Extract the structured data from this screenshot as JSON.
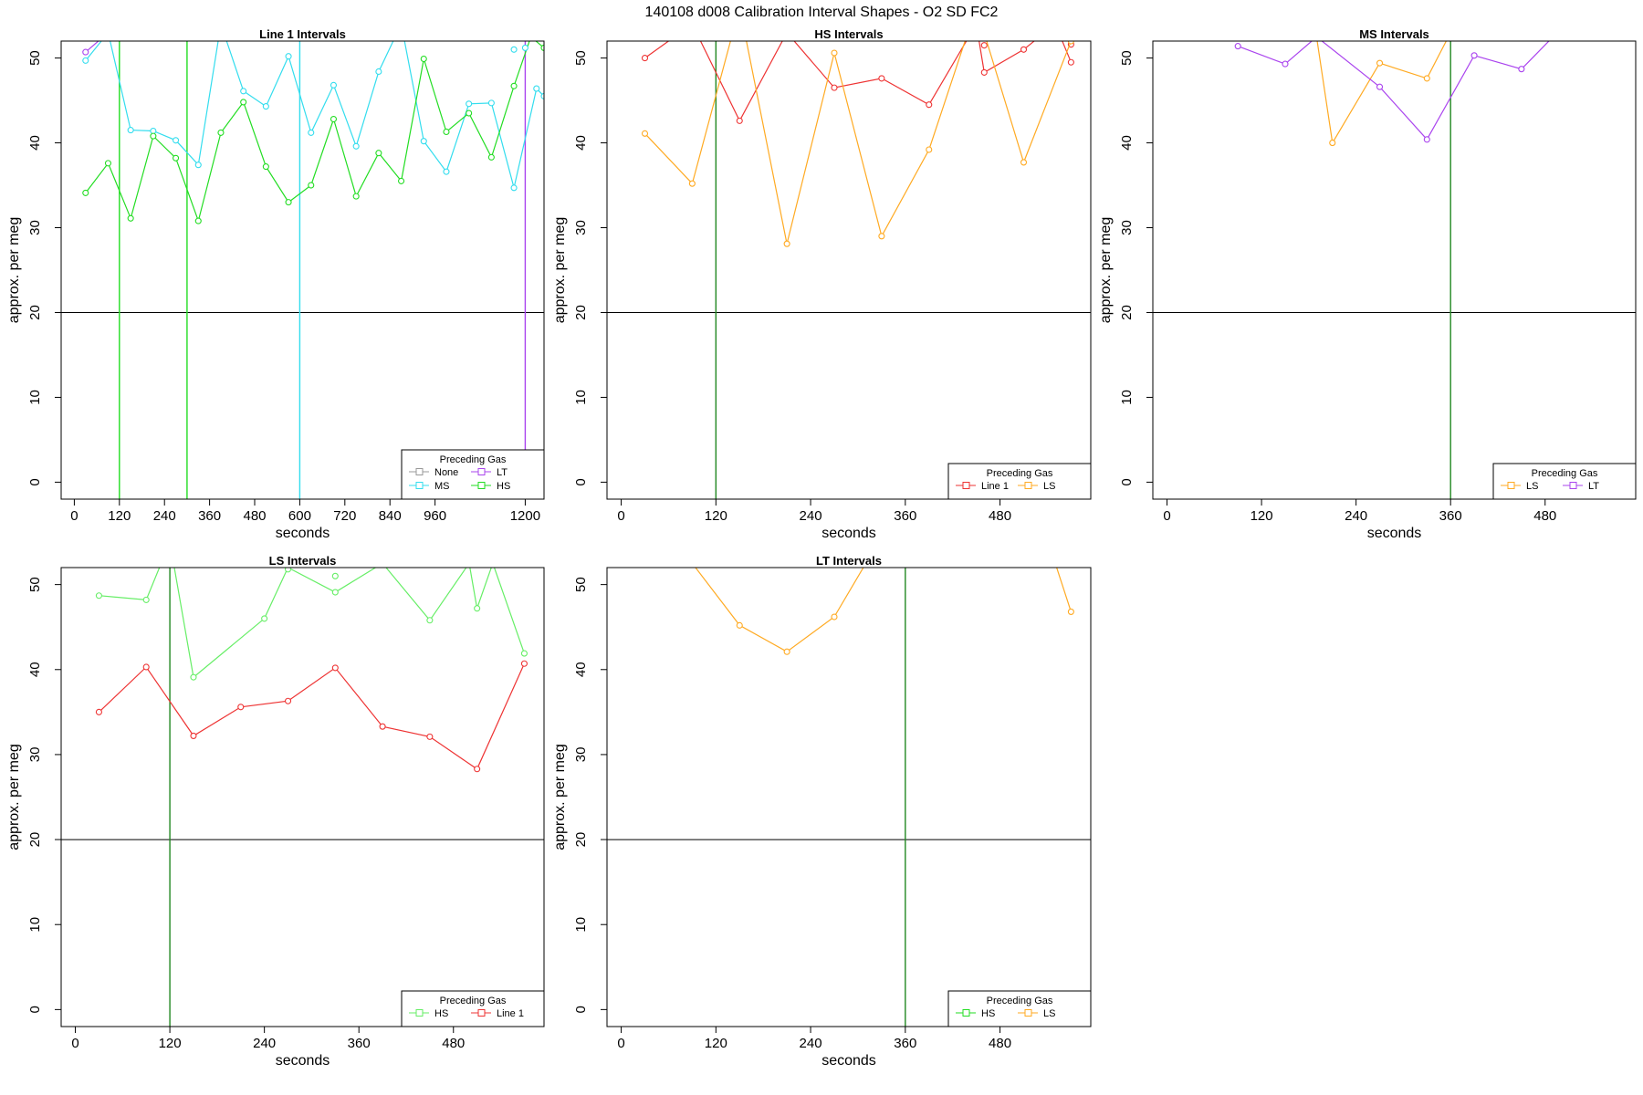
{
  "page": {
    "title": "140108   d008   Calibration Interval Shapes - O2 SD FC2",
    "legend_title": "Preceding Gas"
  },
  "colors": {
    "None": "#999999",
    "MS": "#33ddee",
    "LT": "#aa44ee",
    "HS": "#22dd22",
    "HS_light": "#66ee66",
    "Line 1": "#ee3333",
    "LS": "#ffaa22",
    "axis": "#000000",
    "ref_line": "#000000",
    "vline_dark": "#228822"
  },
  "chart_data": [
    {
      "type": "line",
      "title": "Line 1 Intervals",
      "xlabel": "seconds",
      "ylabel": "approx. per meg",
      "xlim": [
        -35,
        1250
      ],
      "ylim": [
        -2,
        52
      ],
      "xticks": [
        0,
        120,
        240,
        360,
        480,
        600,
        720,
        840,
        960,
        1200
      ],
      "yticks": [
        0,
        10,
        20,
        30,
        40,
        50
      ],
      "hline": 20,
      "vlines": [
        {
          "x": 120,
          "color_key": "HS"
        },
        {
          "x": 300,
          "color_key": "HS"
        },
        {
          "x": 600,
          "color_key": "MS"
        },
        {
          "x": 1200,
          "color_key": "LT"
        }
      ],
      "legend": {
        "position": "bottom-right",
        "ncol": 2,
        "entries": [
          "None",
          "LT",
          "MS",
          "HS"
        ]
      },
      "series": [
        {
          "name": "LT",
          "color_key": "LT",
          "x": [
            30,
            90
          ],
          "y": [
            50.7,
            53
          ]
        },
        {
          "name": "MS",
          "color_key": "MS",
          "x": [
            30,
            90,
            150,
            210,
            270,
            330,
            390,
            450,
            510,
            570,
            630,
            690,
            750,
            810,
            870,
            930,
            990,
            1050,
            1110,
            1170,
            1230,
            1250
          ],
          "y": [
            49.7,
            53,
            41.5,
            41.4,
            40.3,
            37.4,
            54,
            46.1,
            44.3,
            50.2,
            41.2,
            46.8,
            39.6,
            48.4,
            54,
            40.2,
            36.6,
            44.6,
            44.7,
            34.7,
            46.4,
            45.5
          ]
        },
        {
          "name": "HS",
          "color_key": "HS",
          "x": [
            30,
            90,
            150,
            210,
            270,
            330,
            390,
            450,
            510,
            570,
            630,
            690,
            750,
            810,
            870,
            930,
            990,
            1050,
            1110,
            1170,
            1215,
            1250
          ],
          "y": [
            34.1,
            37.6,
            31.1,
            40.8,
            38.2,
            30.8,
            41.2,
            44.8,
            37.2,
            33.0,
            35.0,
            42.8,
            33.7,
            38.8,
            35.5,
            49.9,
            41.3,
            43.5,
            38.3,
            46.7,
            52.5,
            51.2
          ]
        },
        {
          "name": "MS",
          "color_key": "MS",
          "line": false,
          "x": [
            1170,
            1200
          ],
          "y": [
            51.0,
            51.2
          ]
        }
      ]
    },
    {
      "type": "line",
      "title": "HS Intervals",
      "xlabel": "seconds",
      "ylabel": "approx. per meg",
      "xlim": [
        -18,
        595
      ],
      "ylim": [
        -2,
        52
      ],
      "xticks": [
        0,
        120,
        240,
        360,
        480
      ],
      "yticks": [
        0,
        10,
        20,
        30,
        40,
        50
      ],
      "hline": 20,
      "vlines": [
        {
          "x": 120,
          "color_key": "vline_dark"
        }
      ],
      "legend": {
        "position": "bottom-right",
        "ncol": 2,
        "entries": [
          "Line 1",
          "LS"
        ]
      },
      "series": [
        {
          "name": "Line 1",
          "color_key": "Line 1",
          "x": [
            30,
            90,
            150,
            210,
            270,
            330,
            390,
            450,
            460,
            510,
            550,
            570
          ],
          "y": [
            50.0,
            54,
            42.6,
            53,
            46.5,
            47.6,
            44.5,
            54,
            48.3,
            51.0,
            54,
            49.5
          ]
        },
        {
          "name": "Line 1",
          "color_key": "Line 1",
          "line": false,
          "x": [
            460,
            570
          ],
          "y": [
            51.5,
            51.6
          ]
        },
        {
          "name": "LS",
          "color_key": "LS",
          "x": [
            30,
            90,
            150,
            210,
            270,
            330,
            390,
            450,
            510,
            570
          ],
          "y": [
            41.1,
            35.2,
            56,
            28.1,
            50.6,
            29.0,
            39.2,
            56,
            37.7,
            52
          ]
        }
      ]
    },
    {
      "type": "line",
      "title": "MS Intervals",
      "xlabel": "seconds",
      "ylabel": "approx. per meg",
      "xlim": [
        -18,
        595
      ],
      "ylim": [
        -2,
        52
      ],
      "xticks": [
        0,
        120,
        240,
        360,
        480
      ],
      "yticks": [
        0,
        10,
        20,
        30,
        40,
        50
      ],
      "hline": 20,
      "vlines": [
        {
          "x": 360,
          "color_key": "vline_dark"
        }
      ],
      "legend": {
        "position": "bottom-right",
        "ncol": 2,
        "entries": [
          "LS",
          "LT"
        ]
      },
      "series": [
        {
          "name": "LS",
          "color_key": "LS",
          "x": [
            150,
            190,
            210,
            270,
            330,
            360
          ],
          "y": [
            54,
            52.4,
            40.0,
            49.4,
            47.6,
            53
          ]
        },
        {
          "name": "LT",
          "color_key": "LT",
          "x": [
            90,
            150,
            190,
            270,
            330,
            390,
            450,
            490
          ],
          "y": [
            51.4,
            49.3,
            52.5,
            46.6,
            40.4,
            50.3,
            48.7,
            52.5
          ]
        }
      ]
    },
    {
      "type": "line",
      "title": "LS Intervals",
      "xlabel": "seconds",
      "ylabel": "approx. per meg",
      "xlim": [
        -18,
        595
      ],
      "ylim": [
        -2,
        52
      ],
      "xticks": [
        0,
        120,
        240,
        360,
        480
      ],
      "yticks": [
        0,
        10,
        20,
        30,
        40,
        50
      ],
      "hline": 20,
      "vlines": [
        {
          "x": 120,
          "color_key": "vline_dark"
        }
      ],
      "legend": {
        "position": "bottom-right",
        "ncol": 2,
        "entries": [
          "HS",
          "Line 1"
        ]
      },
      "series": [
        {
          "name": "HS",
          "color_key": "HS_light",
          "x": [
            30,
            90,
            120,
            150,
            240,
            270,
            330,
            390,
            450,
            500,
            510,
            530,
            570
          ],
          "y": [
            48.7,
            48.2,
            55,
            39.1,
            46.0,
            52,
            49.1,
            52.5,
            45.8,
            52.5,
            47.2,
            52.5,
            41.9
          ]
        },
        {
          "name": "HS",
          "color_key": "HS_light",
          "line": false,
          "x": [
            270,
            330
          ],
          "y": [
            51.8,
            51.0
          ]
        },
        {
          "name": "Line 1",
          "color_key": "Line 1",
          "x": [
            30,
            90,
            150,
            210,
            270,
            330,
            390,
            450,
            510,
            570
          ],
          "y": [
            35.0,
            40.3,
            32.2,
            35.6,
            36.3,
            40.2,
            33.3,
            32.1,
            28.3,
            40.7
          ]
        }
      ]
    },
    {
      "type": "line",
      "title": "LT Intervals",
      "xlabel": "seconds",
      "ylabel": "approx. per meg",
      "xlim": [
        -18,
        595
      ],
      "ylim": [
        -2,
        52
      ],
      "xticks": [
        0,
        120,
        240,
        360,
        480
      ],
      "yticks": [
        0,
        10,
        20,
        30,
        40,
        50
      ],
      "hline": 20,
      "vlines": [
        {
          "x": 360,
          "color_key": "vline_dark"
        }
      ],
      "legend": {
        "position": "bottom-right",
        "ncol": 2,
        "entries": [
          "HS",
          "LS"
        ]
      },
      "series": [
        {
          "name": "LS",
          "color_key": "LS",
          "x": [
            90,
            150,
            210,
            270,
            310
          ],
          "y": [
            52.5,
            45.2,
            42.1,
            46.2,
            52.5
          ]
        },
        {
          "name": "LS",
          "color_key": "LS",
          "x": [
            550,
            570
          ],
          "y": [
            52.5,
            46.8
          ]
        }
      ]
    }
  ]
}
